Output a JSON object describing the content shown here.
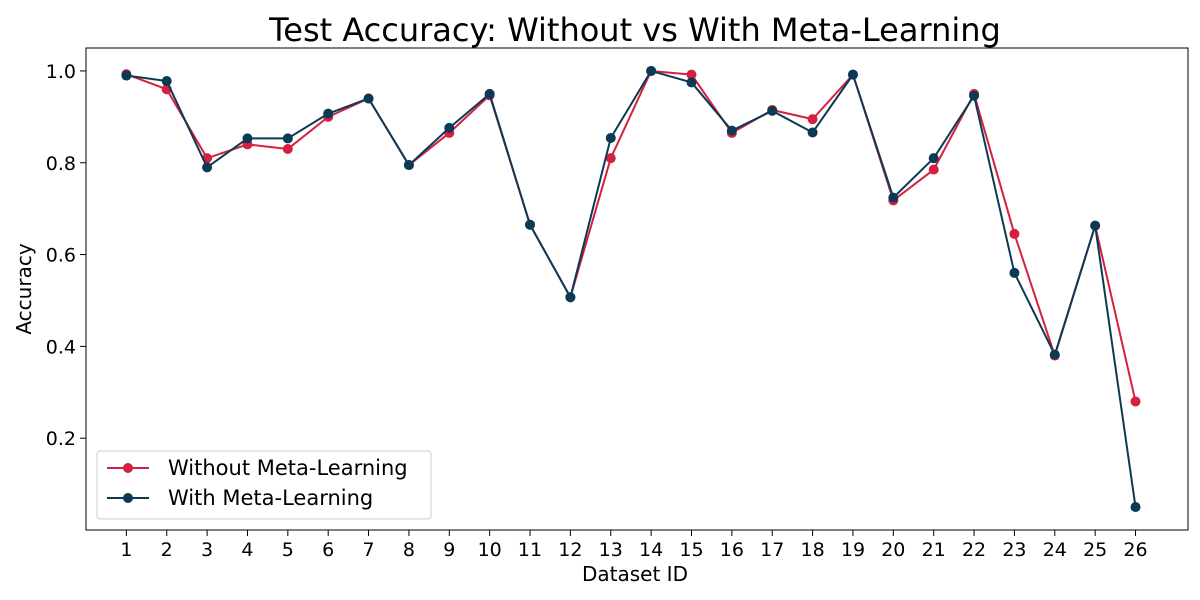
{
  "chart_data": {
    "type": "line",
    "title": "Test Accuracy: Without vs With Meta-Learning",
    "xlabel": "Dataset ID",
    "ylabel": "Accuracy",
    "x": [
      1,
      2,
      3,
      4,
      5,
      6,
      7,
      8,
      9,
      10,
      11,
      12,
      13,
      14,
      15,
      16,
      17,
      18,
      19,
      20,
      21,
      22,
      23,
      24,
      25,
      26
    ],
    "x_ticks": [
      "1",
      "2",
      "3",
      "4",
      "5",
      "6",
      "7",
      "8",
      "9",
      "10",
      "11",
      "12",
      "13",
      "14",
      "15",
      "16",
      "17",
      "18",
      "19",
      "20",
      "21",
      "22",
      "23",
      "24",
      "25",
      "26"
    ],
    "y_ticks": [
      "0.2",
      "0.4",
      "0.6",
      "0.8",
      "1.0"
    ],
    "xlim": [
      0.0,
      27.3
    ],
    "ylim": [
      0.0,
      1.05
    ],
    "grid": false,
    "legend_position": "lower-left",
    "series": [
      {
        "name": "Without Meta-Learning",
        "color": "#d62040",
        "values": [
          0.993,
          0.96,
          0.81,
          0.84,
          0.83,
          0.9,
          0.94,
          0.795,
          0.865,
          0.947,
          0.665,
          0.507,
          0.81,
          1.0,
          0.992,
          0.865,
          0.915,
          0.895,
          0.992,
          0.718,
          0.785,
          0.95,
          0.645,
          0.38,
          0.663,
          0.28
        ]
      },
      {
        "name": "With Meta-Learning",
        "color": "#0b3a55",
        "values": [
          0.99,
          0.978,
          0.79,
          0.853,
          0.853,
          0.907,
          0.94,
          0.795,
          0.876,
          0.95,
          0.665,
          0.507,
          0.854,
          1.0,
          0.975,
          0.87,
          0.913,
          0.866,
          0.992,
          0.724,
          0.81,
          0.946,
          0.56,
          0.382,
          0.663,
          0.05
        ]
      }
    ]
  }
}
